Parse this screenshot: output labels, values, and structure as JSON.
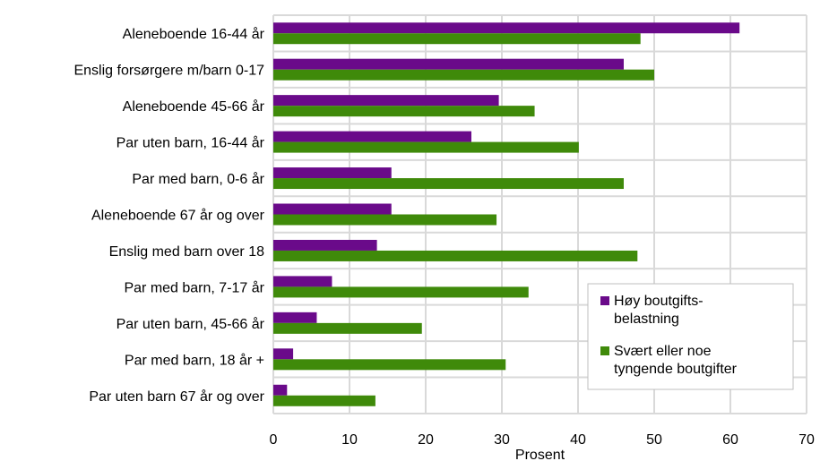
{
  "chart_data": {
    "type": "bar",
    "orientation": "horizontal",
    "categories": [
      "Aleneboende 16-44 år",
      "Enslig forsørgere m/barn 0-17",
      "Aleneboende 45-66 år",
      "Par uten barn, 16-44 år",
      "Par med barn, 0-6 år",
      "Aleneboende 67 år og over",
      "Enslig med barn over 18",
      "Par med barn, 7-17 år",
      "Par uten barn, 45-66 år",
      "Par med barn, 18 år +",
      "Par uten barn 67 år og over"
    ],
    "series": [
      {
        "name_lines": [
          "Høy boutgifts-",
          "belastning"
        ],
        "color": "#6a0a8a",
        "values": [
          61.2,
          46,
          29.6,
          26,
          15.5,
          15.5,
          13.6,
          7.7,
          5.7,
          2.6,
          1.8
        ]
      },
      {
        "name_lines": [
          "Svært eller noe",
          "tyngende boutgifter"
        ],
        "color": "#3f8a0a",
        "values": [
          48.2,
          50,
          34.3,
          40.1,
          46,
          29.3,
          47.8,
          33.5,
          19.5,
          30.5,
          13.4
        ]
      }
    ],
    "xlabel": "Prosent",
    "ylabel": "",
    "xlim": [
      0,
      70
    ],
    "ticks": [
      "0",
      "10",
      "20",
      "30",
      "40",
      "50",
      "60",
      "70"
    ],
    "grid": true,
    "grid_color": "#d9d9d9",
    "legend": "bottom-right"
  }
}
